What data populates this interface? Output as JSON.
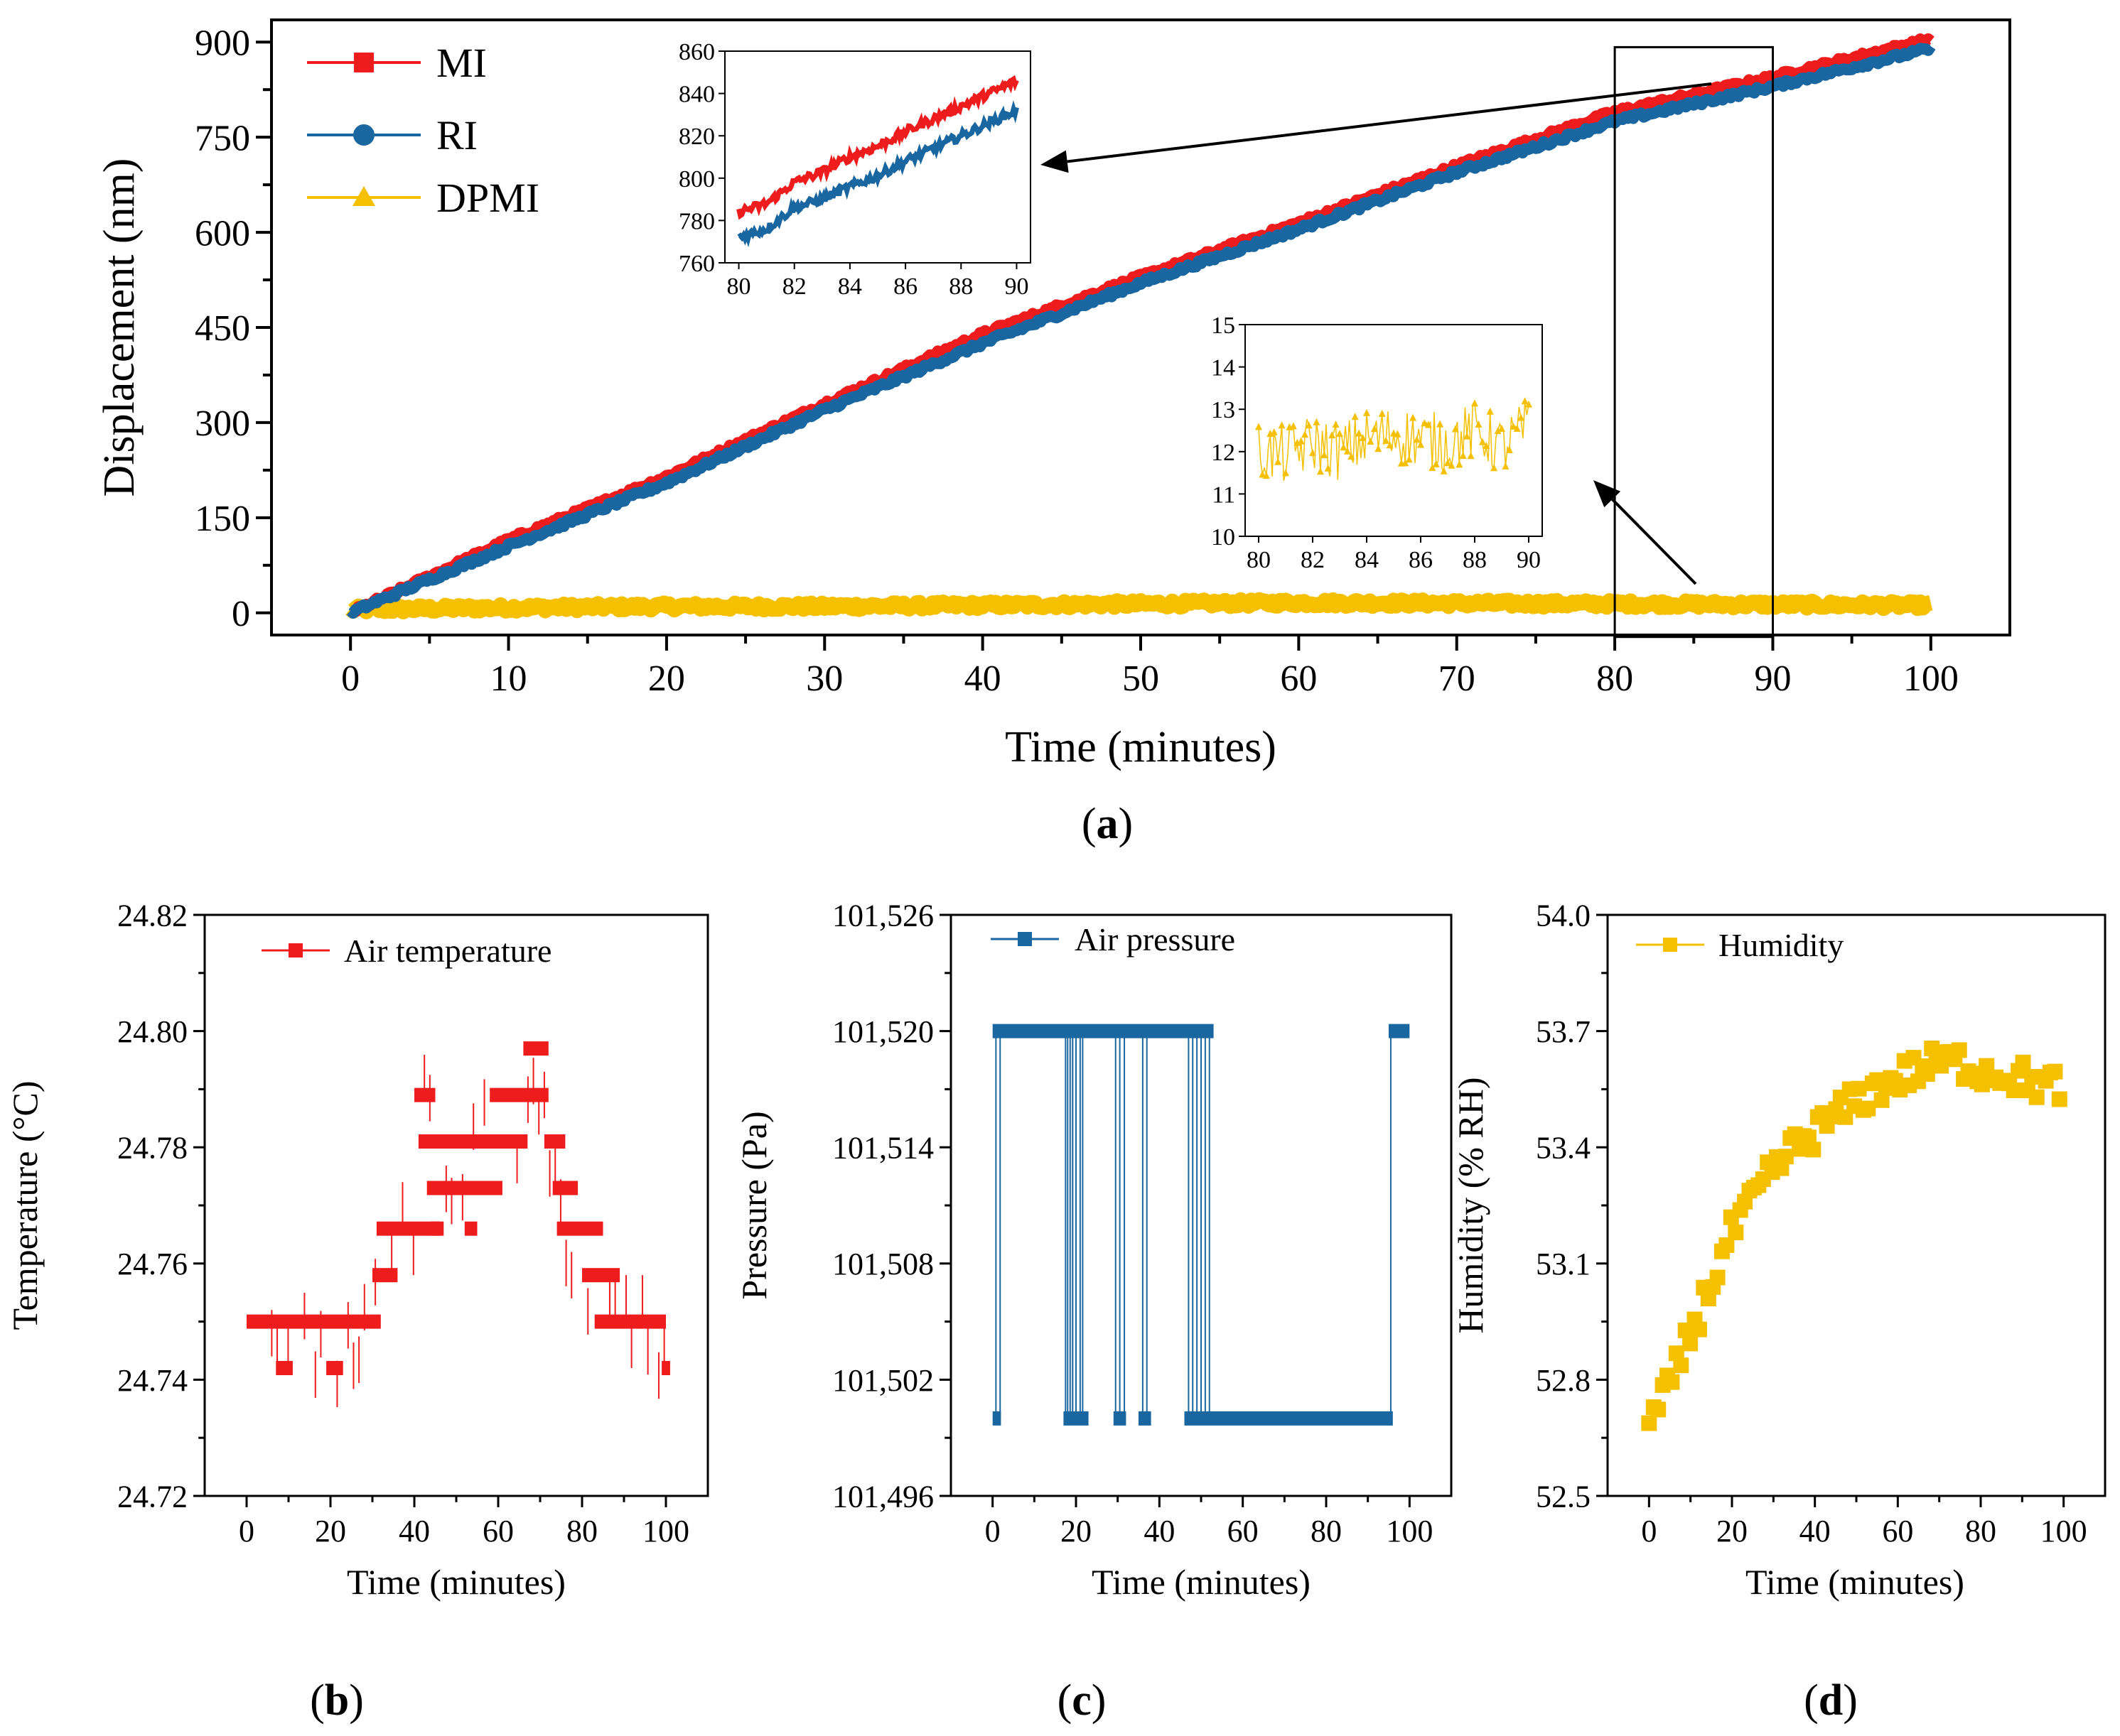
{
  "colors": {
    "mi": "#ee1c1c",
    "ri": "#1a66a0",
    "dpmi": "#f5c000",
    "temp": "#ee1c1c",
    "pressure": "#1a66a0",
    "humidity": "#f5c000"
  },
  "chart_data": [
    {
      "id": "a",
      "panel_label": "a",
      "type": "line",
      "xlabel": "Time (minutes)",
      "ylabel": "Displacement (nm)",
      "xlim": [
        -5,
        105
      ],
      "ylim": [
        -35,
        935
      ],
      "xticks": [
        0,
        10,
        20,
        30,
        40,
        50,
        60,
        70,
        80,
        90,
        100
      ],
      "xtick_labels": [
        "0",
        "10",
        "20",
        "30",
        "40",
        "50",
        "60",
        "70",
        "80",
        "90",
        "100"
      ],
      "yticks": [
        0,
        150,
        300,
        450,
        600,
        750,
        900
      ],
      "ytick_labels": [
        "0",
        "150",
        "300",
        "450",
        "600",
        "750",
        "900"
      ],
      "legend": [
        "MI",
        "RI",
        "DPMI"
      ],
      "legend_position": "top-left",
      "x": [
        0,
        10,
        20,
        30,
        40,
        50,
        60,
        70,
        80,
        90,
        100
      ],
      "series": [
        {
          "name": "MI",
          "marker": "square",
          "values": [
            0,
            115,
            215,
            330,
            440,
            530,
            615,
            705,
            790,
            845,
            905
          ]
        },
        {
          "name": "RI",
          "marker": "circle",
          "values": [
            0,
            105,
            205,
            320,
            425,
            520,
            605,
            695,
            775,
            830,
            890
          ]
        },
        {
          "name": "DPMI",
          "marker": "triangle",
          "values": [
            5,
            8,
            10,
            10,
            12,
            14,
            16,
            15,
            14,
            13,
            12
          ]
        }
      ],
      "highlight_box": {
        "x_range": [
          80,
          90
        ]
      },
      "insets": [
        {
          "id": "a-inset-1",
          "type": "line",
          "xlim": [
            79.5,
            90.5
          ],
          "ylim": [
            760,
            860
          ],
          "xticks": [
            80,
            82,
            84,
            86,
            88,
            90
          ],
          "xtick_labels": [
            "80",
            "82",
            "84",
            "86",
            "88",
            "90"
          ],
          "yticks": [
            760,
            780,
            800,
            820,
            840,
            860
          ],
          "ytick_labels": [
            "760",
            "780",
            "800",
            "820",
            "840",
            "860"
          ],
          "x": [
            80,
            81,
            82,
            83,
            84,
            85,
            86,
            87,
            88,
            89,
            90
          ],
          "series": [
            {
              "name": "MI",
              "values": [
                784,
                788,
                798,
                803,
                810,
                815,
                822,
                828,
                834,
                840,
                846
              ]
            },
            {
              "name": "RI",
              "values": [
                772,
                776,
                786,
                790,
                796,
                801,
                808,
                814,
                820,
                826,
                832
              ]
            }
          ]
        },
        {
          "id": "a-inset-2",
          "type": "line",
          "xlim": [
            79.5,
            90.5
          ],
          "ylim": [
            10,
            15
          ],
          "xticks": [
            80,
            82,
            84,
            86,
            88,
            90
          ],
          "xtick_labels": [
            "80",
            "82",
            "84",
            "86",
            "88",
            "90"
          ],
          "yticks": [
            10,
            11,
            12,
            13,
            14,
            15
          ],
          "ytick_labels": [
            "10",
            "11",
            "12",
            "13",
            "14",
            "15"
          ],
          "x": [
            80,
            81,
            82,
            83,
            84,
            85,
            86,
            87,
            88,
            89,
            90
          ],
          "series": [
            {
              "name": "DPMI",
              "values": [
                12.0,
                11.9,
                12.2,
                12.0,
                12.3,
                12.4,
                12.3,
                12.2,
                12.5,
                12.1,
                12.6
              ]
            }
          ]
        }
      ]
    },
    {
      "id": "b",
      "panel_label": "b",
      "type": "scatter",
      "xlabel": "Time (minutes)",
      "ylabel": "Temperature (°C)",
      "xlim": [
        -10,
        110
      ],
      "ylim": [
        24.72,
        24.82
      ],
      "xticks": [
        0,
        20,
        40,
        60,
        80,
        100
      ],
      "xtick_labels": [
        "0",
        "20",
        "40",
        "60",
        "80",
        "100"
      ],
      "yticks": [
        24.72,
        24.74,
        24.76,
        24.78,
        24.8,
        24.82
      ],
      "ytick_labels": [
        "24.72",
        "24.74",
        "24.76",
        "24.78",
        "24.80",
        "24.82"
      ],
      "legend": [
        "Air temperature"
      ],
      "legend_position": "top-left",
      "x": [
        0,
        8,
        10,
        20,
        30,
        32,
        35,
        40,
        42,
        45,
        50,
        55,
        60,
        65,
        68,
        72,
        75,
        80,
        85,
        90,
        95,
        100
      ],
      "series": [
        {
          "name": "Air temperature",
          "values": [
            24.75,
            24.742,
            24.75,
            24.742,
            24.75,
            24.758,
            24.766,
            24.766,
            24.789,
            24.781,
            24.773,
            24.781,
            24.789,
            24.781,
            24.797,
            24.781,
            24.766,
            24.758,
            24.75,
            24.75,
            24.75,
            24.742
          ]
        }
      ]
    },
    {
      "id": "c",
      "panel_label": "c",
      "type": "scatter",
      "xlabel": "Time (minutes)",
      "ylabel": "Pressure (Pa)",
      "xlim": [
        -10,
        110
      ],
      "ylim": [
        101496,
        101526
      ],
      "xticks": [
        0,
        20,
        40,
        60,
        80,
        100
      ],
      "xtick_labels": [
        "0",
        "20",
        "40",
        "60",
        "80",
        "100"
      ],
      "yticks": [
        101496,
        101502,
        101508,
        101514,
        101520,
        101526
      ],
      "ytick_labels": [
        "101,496",
        "101,502",
        "101,508",
        "101,514",
        "101,520",
        "101,526"
      ],
      "legend": [
        "Air pressure"
      ],
      "legend_position": "top-left",
      "segments": [
        {
          "x_range": [
            0,
            53
          ],
          "value": 101520
        },
        {
          "x_range": [
            95,
            100
          ],
          "value": 101520
        },
        {
          "x_range": [
            0,
            2
          ],
          "value": 101500
        },
        {
          "x_range": [
            17,
            23
          ],
          "value": 101500
        },
        {
          "x_range": [
            29,
            32
          ],
          "value": 101500
        },
        {
          "x_range": [
            35,
            38
          ],
          "value": 101500
        },
        {
          "x_range": [
            46,
            96
          ],
          "value": 101500
        }
      ]
    },
    {
      "id": "d",
      "panel_label": "d",
      "type": "scatter",
      "xlabel": "Time (minutes)",
      "ylabel": "Humidity (% RH)",
      "xlim": [
        -10,
        110
      ],
      "ylim": [
        52.5,
        54.0
      ],
      "xticks": [
        0,
        20,
        40,
        60,
        80,
        100
      ],
      "xtick_labels": [
        "0",
        "20",
        "40",
        "60",
        "80",
        "100"
      ],
      "yticks": [
        52.5,
        52.8,
        53.1,
        53.4,
        53.7,
        54.0
      ],
      "ytick_labels": [
        "52.5",
        "52.8",
        "53.1",
        "53.4",
        "53.7",
        "54.0"
      ],
      "legend": [
        "Humidity"
      ],
      "legend_position": "top-left",
      "x": [
        0,
        5,
        10,
        15,
        20,
        25,
        30,
        35,
        40,
        45,
        50,
        55,
        60,
        65,
        70,
        75,
        80,
        85,
        90,
        95,
        100
      ],
      "series": [
        {
          "name": "Humidity",
          "values": [
            52.68,
            52.78,
            52.92,
            53.05,
            53.18,
            53.26,
            53.34,
            53.4,
            53.44,
            53.48,
            53.52,
            53.55,
            53.58,
            53.6,
            53.62,
            53.62,
            53.6,
            53.59,
            53.58,
            53.56,
            53.56
          ]
        }
      ]
    }
  ]
}
